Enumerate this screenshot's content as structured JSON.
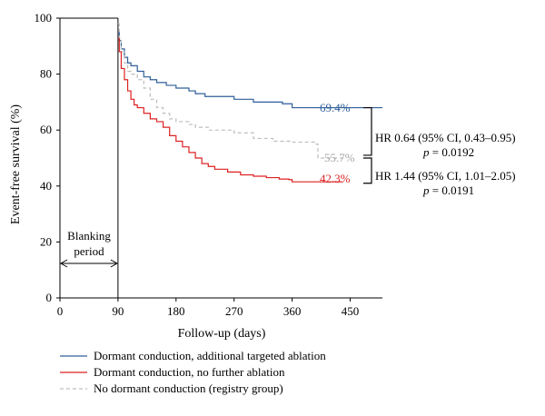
{
  "chart_data": {
    "type": "line",
    "xlabel": "Follow-up (days)",
    "ylabel": "Event-free survival (%)",
    "xlim": [
      0,
      500
    ],
    "ylim": [
      0,
      100
    ],
    "xticks": [
      "0",
      "90",
      "180",
      "270",
      "360",
      "450"
    ],
    "xtick_values": [
      0,
      90,
      180,
      270,
      360,
      450
    ],
    "yticks": [
      "0",
      "20",
      "40",
      "60",
      "80",
      "100"
    ],
    "ytick_values": [
      0,
      20,
      40,
      60,
      80,
      100
    ],
    "series": [
      {
        "name": "Dormant conduction, additional targeted ablation",
        "color": "#2f5f9a",
        "dash": "solid",
        "end_label": "69.4%",
        "points": [
          [
            90,
            95
          ],
          [
            92,
            92
          ],
          [
            95,
            89
          ],
          [
            100,
            86
          ],
          [
            105,
            84
          ],
          [
            110,
            83
          ],
          [
            120,
            81
          ],
          [
            130,
            79
          ],
          [
            140,
            78
          ],
          [
            150,
            77
          ],
          [
            165,
            76
          ],
          [
            180,
            75
          ],
          [
            200,
            74
          ],
          [
            210,
            73
          ],
          [
            225,
            72
          ],
          [
            250,
            72
          ],
          [
            270,
            71
          ],
          [
            300,
            70
          ],
          [
            330,
            70
          ],
          [
            345,
            69.4
          ],
          [
            360,
            68
          ],
          [
            400,
            68
          ],
          [
            500,
            68
          ]
        ]
      },
      {
        "name": "Dormant conduction, no further ablation",
        "color": "#dd2222",
        "dash": "solid",
        "end_label": "42.3%",
        "points": [
          [
            90,
            93
          ],
          [
            92,
            88
          ],
          [
            95,
            82
          ],
          [
            100,
            78
          ],
          [
            105,
            74
          ],
          [
            110,
            71
          ],
          [
            115,
            69
          ],
          [
            120,
            68
          ],
          [
            130,
            66
          ],
          [
            140,
            64
          ],
          [
            150,
            63
          ],
          [
            160,
            61
          ],
          [
            170,
            58
          ],
          [
            180,
            56
          ],
          [
            190,
            54
          ],
          [
            200,
            52
          ],
          [
            210,
            50
          ],
          [
            220,
            48
          ],
          [
            230,
            47
          ],
          [
            240,
            46
          ],
          [
            260,
            45
          ],
          [
            280,
            44
          ],
          [
            300,
            43.5
          ],
          [
            320,
            43
          ],
          [
            340,
            42.5
          ],
          [
            355,
            42.3
          ],
          [
            360,
            41.5
          ],
          [
            400,
            41.5
          ],
          [
            438,
            41.5
          ]
        ]
      },
      {
        "name": "No dormant conduction (registry group)",
        "color": "#bdbdbd",
        "dash": "dashed",
        "end_label": "55.7%",
        "points": [
          [
            90,
            98
          ],
          [
            92,
            93
          ],
          [
            95,
            88
          ],
          [
            100,
            84
          ],
          [
            105,
            81
          ],
          [
            110,
            80
          ],
          [
            120,
            78
          ],
          [
            130,
            75
          ],
          [
            140,
            71
          ],
          [
            150,
            68
          ],
          [
            160,
            66
          ],
          [
            170,
            64
          ],
          [
            180,
            63
          ],
          [
            200,
            62
          ],
          [
            210,
            61
          ],
          [
            230,
            60
          ],
          [
            250,
            60
          ],
          [
            270,
            59
          ],
          [
            300,
            57
          ],
          [
            330,
            56
          ],
          [
            360,
            55.7
          ],
          [
            395,
            55
          ],
          [
            400,
            50
          ],
          [
            440,
            50
          ]
        ]
      }
    ],
    "blanking_label_line1": "Blanking",
    "blanking_label_line2": "period",
    "blanking_range": [
      0,
      90
    ],
    "annotations": {
      "hr1_line1": "HR 0.64 (95% CI, 0.43–0.95)",
      "hr1_line2_p": "p",
      "hr1_line2_rest": " = 0.0192",
      "hr1_bracket": [
        51,
        68
      ],
      "hr2_line1": "HR 1.44 (95% CI, 1.01–2.05)",
      "hr2_line2_p": "p",
      "hr2_line2_rest": " = 0.0191",
      "hr2_bracket": [
        41,
        50
      ]
    }
  }
}
